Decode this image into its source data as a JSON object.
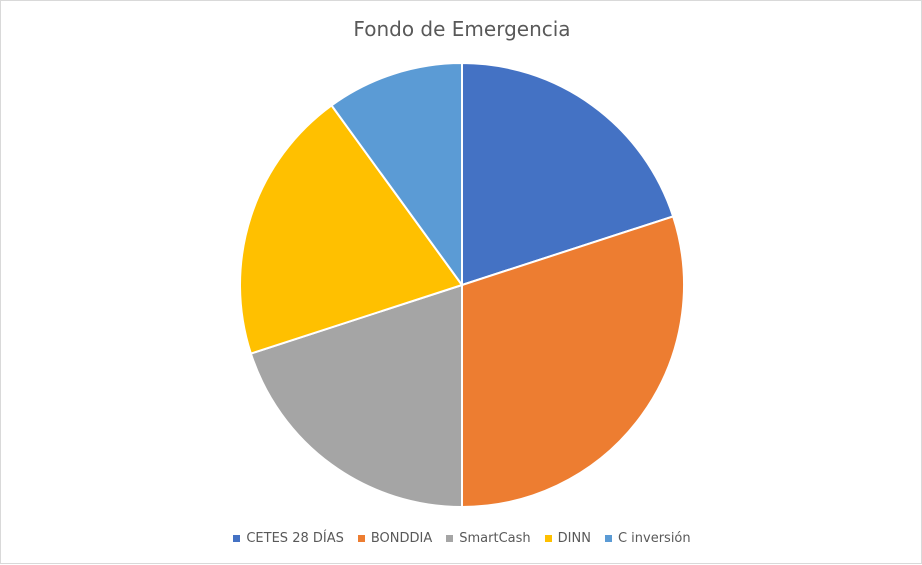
{
  "chart_data": {
    "type": "pie",
    "title": "Fondo de Emergencia",
    "categories": [
      "CETES 28 DÍAS",
      "BONDDIA",
      "SmartCash",
      "DINN",
      "C inversión"
    ],
    "values": [
      20,
      30,
      20,
      20,
      10
    ],
    "colors": [
      "#4472C4",
      "#ED7D31",
      "#A5A5A5",
      "#FFC000",
      "#5B9BD5"
    ],
    "legend_position": "bottom"
  }
}
